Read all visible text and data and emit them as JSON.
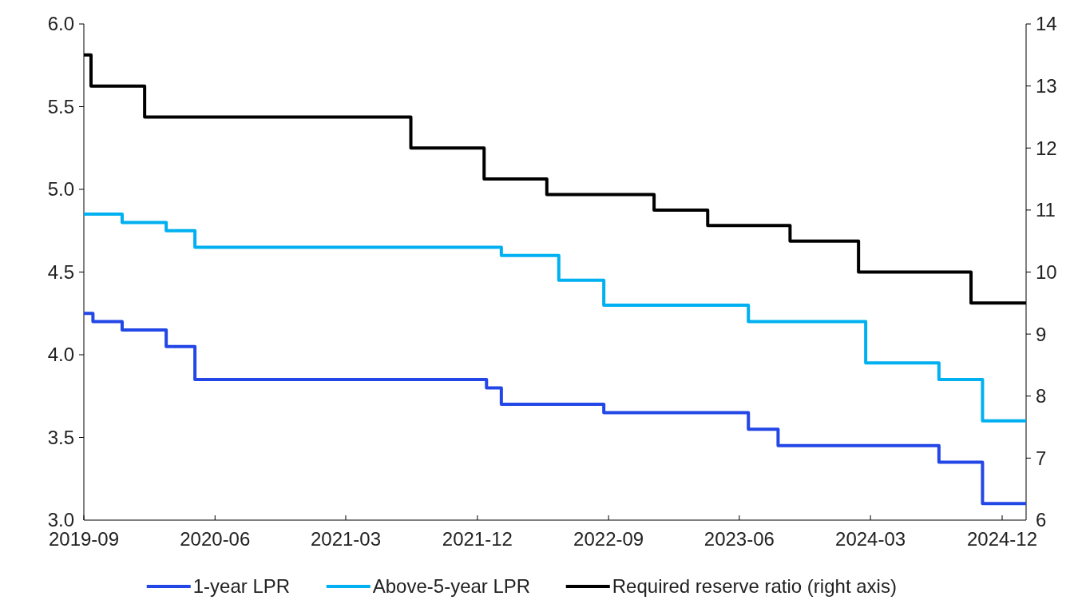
{
  "chart_data": {
    "type": "step",
    "xlim": [
      "2019-09-01",
      "2025-01-20"
    ],
    "xticks": [
      {
        "value": "2019-09-01",
        "label": "2019-09"
      },
      {
        "value": "2020-06-01",
        "label": "2020-06"
      },
      {
        "value": "2021-03-01",
        "label": "2021-03"
      },
      {
        "value": "2021-12-01",
        "label": "2021-12"
      },
      {
        "value": "2022-09-01",
        "label": "2022-09"
      },
      {
        "value": "2023-06-01",
        "label": "2023-06"
      },
      {
        "value": "2024-03-01",
        "label": "2024-03"
      },
      {
        "value": "2024-12-01",
        "label": "2024-12"
      }
    ],
    "ylim": [
      3.0,
      6.0
    ],
    "yticks": [
      {
        "value": 3.0,
        "label": "3.0"
      },
      {
        "value": 3.5,
        "label": "3.5"
      },
      {
        "value": 4.0,
        "label": "4.0"
      },
      {
        "value": 4.5,
        "label": "4.5"
      },
      {
        "value": 5.0,
        "label": "5.0"
      },
      {
        "value": 5.5,
        "label": "5.5"
      },
      {
        "value": 6.0,
        "label": "6.0"
      }
    ],
    "y2lim": [
      6,
      14
    ],
    "y2ticks": [
      {
        "value": 6,
        "label": "6"
      },
      {
        "value": 7,
        "label": "7"
      },
      {
        "value": 8,
        "label": "8"
      },
      {
        "value": 9,
        "label": "9"
      },
      {
        "value": 10,
        "label": "10"
      },
      {
        "value": 11,
        "label": "11"
      },
      {
        "value": 12,
        "label": "12"
      },
      {
        "value": 13,
        "label": "13"
      },
      {
        "value": 14,
        "label": "14"
      }
    ],
    "grid": false,
    "legend": "bottom",
    "line_style": "solid",
    "marker": "none",
    "series": [
      {
        "name": "1-year LPR",
        "color": "#2347e6",
        "x": [
          "2019-09-01",
          "2019-09-20",
          "2019-11-20",
          "2020-02-20",
          "2020-04-20",
          "2021-12-20",
          "2022-01-20",
          "2022-08-22",
          "2023-06-20",
          "2023-08-21",
          "2024-07-22",
          "2024-10-21",
          "2025-01-20"
        ],
        "values": [
          4.25,
          4.2,
          4.15,
          4.05,
          3.85,
          3.8,
          3.7,
          3.65,
          3.55,
          3.45,
          3.35,
          3.1,
          3.1
        ]
      },
      {
        "name": "Above-5-year LPR",
        "color": "#00b0f0",
        "x": [
          "2019-09-01",
          "2019-11-20",
          "2020-02-20",
          "2020-04-20",
          "2022-01-20",
          "2022-05-20",
          "2022-08-22",
          "2023-06-20",
          "2024-02-20",
          "2024-07-22",
          "2024-10-21",
          "2025-01-20"
        ],
        "values": [
          4.85,
          4.8,
          4.75,
          4.65,
          4.6,
          4.45,
          4.3,
          4.2,
          3.95,
          3.85,
          3.6,
          3.6
        ]
      },
      {
        "name": "Required reserve ratio (right axis)",
        "color": "#000000",
        "axis": "y2",
        "x": [
          "2019-09-01",
          "2019-09-16",
          "2020-01-06",
          "2021-07-15",
          "2021-12-15",
          "2022-04-25",
          "2022-12-05",
          "2023-03-27",
          "2023-09-15",
          "2024-02-05",
          "2024-09-27",
          "2025-01-20"
        ],
        "values": [
          13.5,
          13.0,
          12.5,
          12.0,
          11.5,
          11.25,
          11.0,
          10.75,
          10.5,
          10.0,
          9.5,
          9.5
        ]
      }
    ]
  }
}
